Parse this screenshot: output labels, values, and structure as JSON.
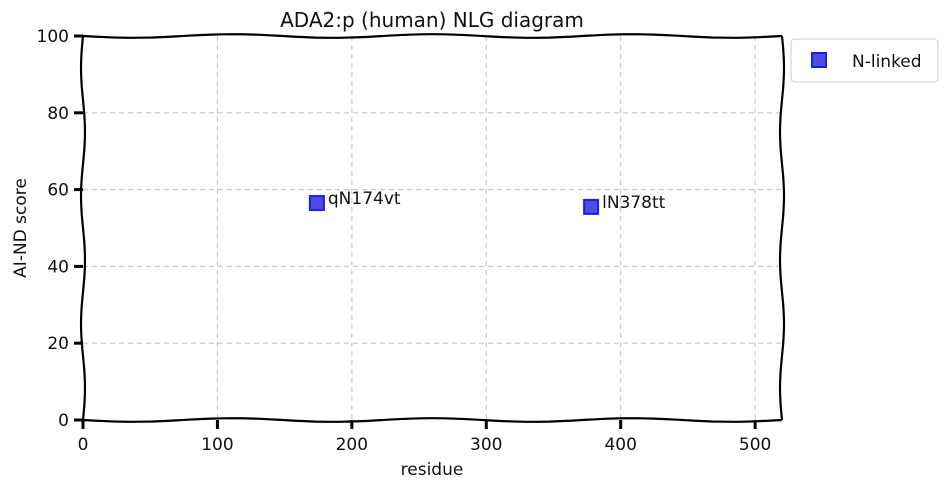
{
  "chart_data": {
    "type": "scatter",
    "title": "ADA2:p (human) NLG diagram",
    "xlabel": "residue",
    "ylabel": "AI-ND score",
    "xlim": [
      0,
      520
    ],
    "ylim": [
      0,
      100
    ],
    "x_ticks": [
      0,
      100,
      200,
      300,
      400,
      500
    ],
    "y_ticks": [
      0,
      20,
      40,
      60,
      80,
      100
    ],
    "grid": true,
    "legend_position": "outside-top-right",
    "series": [
      {
        "name": "N-linked",
        "color": "#1f1fe0",
        "marker": "square",
        "points": [
          {
            "x": 174,
            "y": 56.5,
            "label": "qN174vt"
          },
          {
            "x": 378,
            "y": 55.5,
            "label": "lN378tt"
          }
        ]
      }
    ]
  }
}
